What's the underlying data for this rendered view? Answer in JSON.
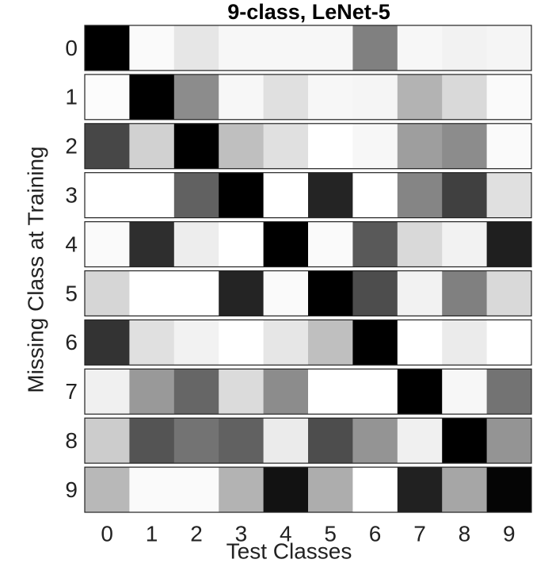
{
  "chart_data": {
    "type": "heatmap",
    "title": "9-class, LeNet-5",
    "xlabel": "Test Classes",
    "ylabel": "Missing Class at Training",
    "x": [
      "0",
      "1",
      "2",
      "3",
      "4",
      "5",
      "6",
      "7",
      "8",
      "9"
    ],
    "y": [
      "0",
      "1",
      "2",
      "3",
      "4",
      "5",
      "6",
      "7",
      "8",
      "9"
    ],
    "colormap": [
      "#ffffff",
      "#000000"
    ],
    "values": [
      [
        1,
        0.02,
        0.1,
        0.03,
        0.03,
        0.03,
        0.5,
        0.03,
        0.05,
        0.04
      ],
      [
        0.01,
        1,
        0.45,
        0.03,
        0.12,
        0.03,
        0.04,
        0.3,
        0.15,
        0.02
      ],
      [
        0.72,
        0.18,
        1,
        0.25,
        0.12,
        0,
        0.03,
        0.38,
        0.45,
        0.02
      ],
      [
        0,
        0,
        0.62,
        1,
        0,
        0.86,
        0,
        0.48,
        0.75,
        0.12
      ],
      [
        0.02,
        0.82,
        0.07,
        0,
        1,
        0.02,
        0.65,
        0.15,
        0.05,
        0.88
      ],
      [
        0.16,
        0,
        0,
        0.86,
        0.02,
        1,
        0.7,
        0.05,
        0.5,
        0.15
      ],
      [
        0.8,
        0.12,
        0.05,
        0,
        0.1,
        0.25,
        1,
        0,
        0.08,
        0
      ],
      [
        0.06,
        0.4,
        0.6,
        0.14,
        0.45,
        0,
        0,
        1,
        0.03,
        0.55
      ],
      [
        0.2,
        0.67,
        0.55,
        0.62,
        0.08,
        0.7,
        0.42,
        0.06,
        1,
        0.42
      ],
      [
        0.28,
        0.02,
        0.02,
        0.3,
        0.93,
        0.32,
        0,
        0.87,
        0.35,
        0.98
      ]
    ]
  }
}
